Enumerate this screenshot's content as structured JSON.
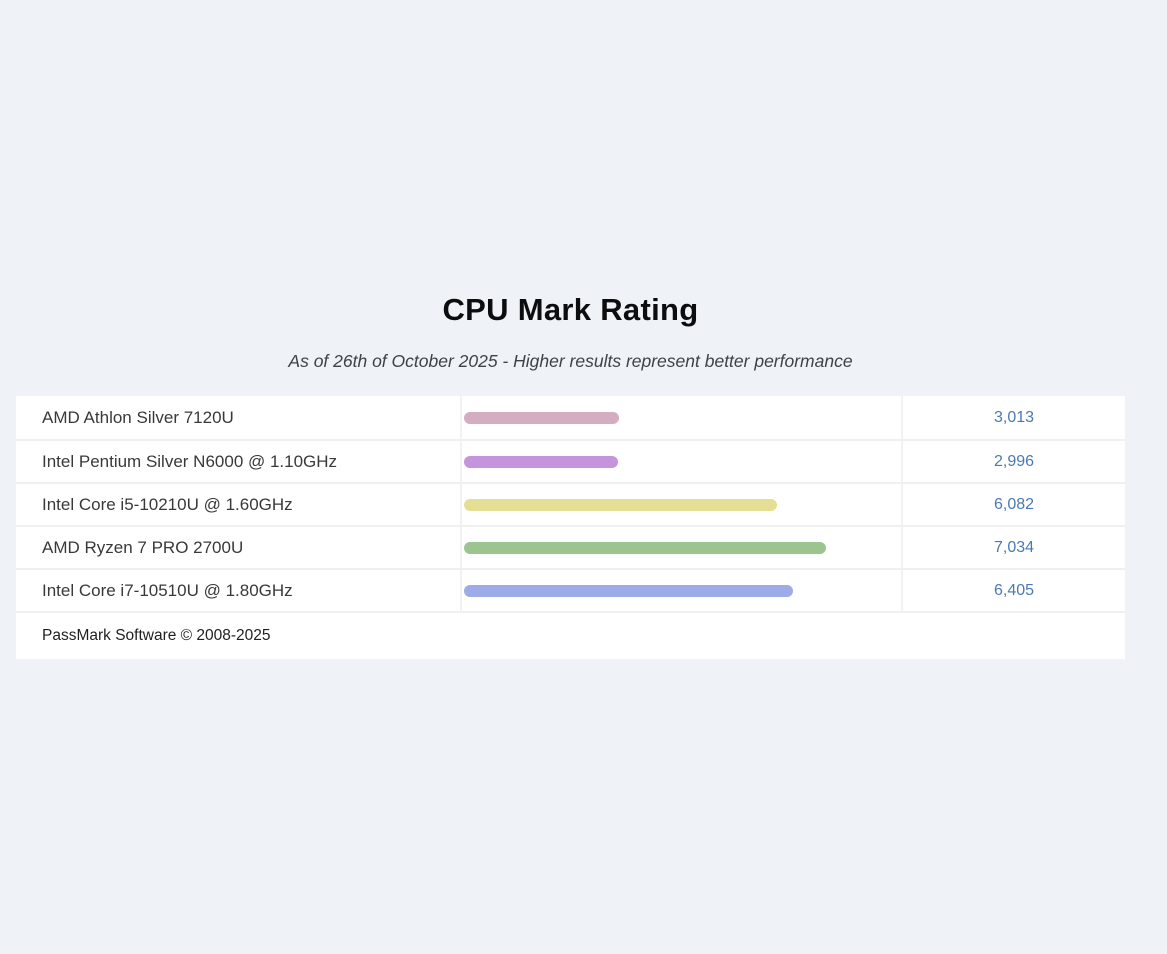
{
  "page": {
    "background": "#eff2f7"
  },
  "header": {
    "title": "CPU Mark Rating",
    "subtitle": "As of 26th of October 2025 - Higher results represent better performance"
  },
  "footer": {
    "copyright": "PassMark Software © 2008-2025"
  },
  "colors": {
    "table_background": "#ffffff",
    "row_divider": "#eef0f2",
    "value_text": "#4a7ab5"
  },
  "chart_data": {
    "type": "bar",
    "orientation": "horizontal",
    "title": "CPU Mark Rating",
    "subtitle": "As of 26th of October 2025 - Higher results represent better performance",
    "categories": [
      "AMD Athlon Silver 7120U",
      "Intel Pentium Silver N6000 @ 1.10GHz",
      "Intel Core i5-10210U @ 1.60GHz",
      "AMD Ryzen 7 PRO 2700U",
      "Intel Core i7-10510U @ 1.80GHz"
    ],
    "values": [
      3013,
      2996,
      6082,
      7034,
      6405
    ],
    "value_labels": [
      "3,013",
      "2,996",
      "6,082",
      "7,034",
      "6,405"
    ],
    "bar_colors": [
      "#d4aec0",
      "#c494dc",
      "#e5df96",
      "#9cc48f",
      "#9dabe8"
    ],
    "xlim": [
      0,
      8500
    ],
    "grid": false,
    "legend": "none",
    "footer": "PassMark Software © 2008-2025"
  }
}
